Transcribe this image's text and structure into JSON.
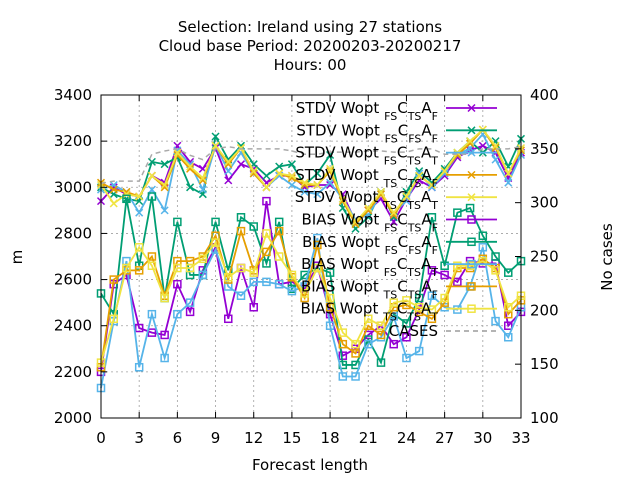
{
  "title_lines": [
    "Selection: Ireland using    27 stations",
    "Cloud base   Period: 20200203-20200217",
    "Hours:  00"
  ],
  "chart_data": {
    "type": "line",
    "title": "Selection: Ireland using    27 stations / Cloud base   Period: 20200203-20200217 / Hours:  00",
    "xlabel": "Forecast length",
    "ylabel": "m",
    "y2label": "No cases",
    "xlim": [
      0,
      33
    ],
    "ylim": [
      2000,
      3400
    ],
    "y2lim": [
      100,
      400
    ],
    "xticks": [
      0,
      3,
      6,
      9,
      12,
      15,
      18,
      21,
      24,
      27,
      30,
      33
    ],
    "yticks": [
      2000,
      2200,
      2400,
      2600,
      2800,
      3000,
      3200,
      3400
    ],
    "y2ticks": [
      100,
      150,
      200,
      250,
      300,
      350,
      400
    ],
    "grid": true,
    "legend_position": "top-right",
    "x": [
      0,
      1,
      2,
      3,
      4,
      5,
      6,
      7,
      8,
      9,
      10,
      11,
      12,
      13,
      14,
      15,
      16,
      17,
      18,
      19,
      20,
      21,
      22,
      23,
      24,
      25,
      26,
      27,
      28,
      29,
      30,
      31,
      32,
      33
    ],
    "series": [
      {
        "name": "STDV Wopt_FS C_TS A_F",
        "legend": {
          "pre": "STDV Wopt",
          "s1": "FS",
          "c": "C",
          "s2": "TS",
          "a": "A",
          "s3": "F"
        },
        "color": "#9400d3",
        "marker": "x",
        "dash": false,
        "axis": "left",
        "values": [
          2940,
          3000,
          2970,
          2960,
          3050,
          3020,
          3180,
          3110,
          3080,
          3170,
          3030,
          3100,
          3080,
          3020,
          3050,
          3050,
          3000,
          3010,
          3010,
          2970,
          2850,
          2900,
          2950,
          2850,
          2950,
          3030,
          3000,
          3050,
          3130,
          3160,
          3180,
          3150,
          3040,
          3150
        ]
      },
      {
        "name": "STDV Wopt_FS C_FS A_F",
        "legend": {
          "pre": "STDV Wopt",
          "s1": "FS",
          "c": "C",
          "s2": "FS",
          "a": "A",
          "s3": "F"
        },
        "color": "#009e73",
        "marker": "x",
        "dash": false,
        "axis": "left",
        "values": [
          3000,
          2970,
          2950,
          2940,
          3110,
          3100,
          3130,
          3000,
          2970,
          3220,
          3120,
          3180,
          3100,
          3050,
          3090,
          3100,
          3010,
          3060,
          3140,
          2910,
          2820,
          2870,
          2980,
          2870,
          2980,
          3070,
          3020,
          3080,
          3150,
          3200,
          3150,
          3200,
          3090,
          3210
        ]
      },
      {
        "name": "STDV Wopt_FS C_TS A_T",
        "legend": {
          "pre": "STDV Wopt",
          "s1": "FS",
          "c": "C",
          "s2": "TS",
          "a": "A",
          "s3": "T"
        },
        "color": "#56b4e9",
        "marker": "x",
        "dash": false,
        "axis": "left",
        "values": [
          2990,
          3010,
          2980,
          2890,
          2990,
          2900,
          3160,
          3100,
          2990,
          3180,
          3070,
          3150,
          3060,
          3000,
          3050,
          3010,
          2980,
          2970,
          3020,
          2950,
          2860,
          2880,
          2970,
          2890,
          2940,
          3060,
          3000,
          3060,
          3140,
          3170,
          3230,
          3120,
          3020,
          3140
        ]
      },
      {
        "name": "STDV Wopt_TS C_TS A_F",
        "legend": {
          "pre": "STDV Wopt",
          "s1": "TS",
          "c": "C",
          "s2": "TS",
          "a": "A",
          "s3": "F"
        },
        "color": "#e69f00",
        "marker": "x",
        "dash": false,
        "axis": "left",
        "values": [
          3020,
          2990,
          2980,
          2960,
          3050,
          3000,
          3140,
          3080,
          3030,
          3180,
          3100,
          3170,
          3060,
          3000,
          3060,
          3040,
          3010,
          3010,
          3070,
          2940,
          2840,
          2900,
          2970,
          2880,
          2960,
          3050,
          3010,
          3070,
          3140,
          3190,
          3250,
          3170,
          3060,
          3160
        ]
      },
      {
        "name": "STDV Wopt_TS C_TS A_T",
        "legend": {
          "pre": "STDV Wopt",
          "s1": "TS",
          "c": "C",
          "s2": "TS",
          "a": "A",
          "s3": "T"
        },
        "color": "#f0e442",
        "marker": "x",
        "dash": false,
        "axis": "left",
        "values": [
          3010,
          2930,
          2970,
          2960,
          3050,
          3010,
          3150,
          3090,
          3040,
          3180,
          3110,
          3170,
          3070,
          3000,
          3060,
          3050,
          3020,
          3010,
          3080,
          2950,
          2850,
          2910,
          2980,
          2890,
          2960,
          3050,
          3010,
          3070,
          3150,
          3200,
          3250,
          3180,
          3060,
          3170
        ]
      },
      {
        "name": "BIAS Wopt_FS C_TS A_F",
        "legend": {
          "pre": "BIAS Wopt",
          "s1": "FS",
          "c": "C",
          "s2": "TS",
          "a": "A",
          "s3": "F"
        },
        "color": "#9400d3",
        "marker": "square",
        "dash": false,
        "axis": "left",
        "values": [
          2200,
          2580,
          2620,
          2390,
          2370,
          2360,
          2580,
          2460,
          2640,
          2740,
          2430,
          2650,
          2480,
          2940,
          2580,
          2590,
          2560,
          2660,
          2450,
          2270,
          2300,
          2360,
          2400,
          2320,
          2350,
          2470,
          2640,
          2620,
          2590,
          2680,
          2670,
          2670,
          2400,
          2460
        ]
      },
      {
        "name": "BIAS Wopt_FS C_FS A_F",
        "legend": {
          "pre": "BIAS Wopt",
          "s1": "FS",
          "c": "C",
          "s2": "FS",
          "a": "A",
          "s3": "F"
        },
        "color": "#009e73",
        "marker": "square",
        "dash": false,
        "axis": "left",
        "values": [
          2540,
          2450,
          2950,
          2660,
          2960,
          2520,
          2850,
          2620,
          2620,
          2850,
          2640,
          2870,
          2830,
          2670,
          2850,
          2560,
          2620,
          2650,
          2630,
          2230,
          2230,
          2340,
          2240,
          2450,
          2410,
          2520,
          2870,
          2660,
          2890,
          2910,
          2790,
          2700,
          2630,
          2680
        ]
      },
      {
        "name": "BIAS Wopt_FS C_TS A_T",
        "legend": {
          "pre": "BIAS Wopt",
          "s1": "FS",
          "c": "C",
          "s2": "TS",
          "a": "A",
          "s3": "T"
        },
        "color": "#56b4e9",
        "marker": "square",
        "dash": false,
        "axis": "left",
        "values": [
          2130,
          2420,
          2680,
          2220,
          2450,
          2260,
          2450,
          2500,
          2620,
          2730,
          2570,
          2530,
          2590,
          2590,
          2580,
          2550,
          2570,
          2780,
          2400,
          2180,
          2180,
          2320,
          2350,
          2440,
          2260,
          2290,
          2530,
          2480,
          2470,
          2570,
          2740,
          2420,
          2350,
          2480
        ]
      },
      {
        "name": "BIAS Wopt_TS C_TS A_F",
        "legend": {
          "pre": "BIAS Wopt",
          "s1": "TS",
          "c": "C",
          "s2": "TS",
          "a": "A",
          "s3": "F"
        },
        "color": "#e69f00",
        "marker": "square",
        "dash": false,
        "axis": "left",
        "values": [
          2220,
          2600,
          2640,
          2640,
          2700,
          2530,
          2680,
          2680,
          2700,
          2790,
          2600,
          2810,
          2640,
          2720,
          2810,
          2610,
          2520,
          2750,
          2480,
          2320,
          2280,
          2400,
          2360,
          2480,
          2490,
          2460,
          2430,
          2500,
          2650,
          2650,
          2690,
          2650,
          2450,
          2510
        ]
      },
      {
        "name": "BIAS Wopt_TS C_TS A_T",
        "legend": {
          "pre": "BIAS Wopt",
          "s1": "TS",
          "c": "C",
          "s2": "TS",
          "a": "A",
          "s3": "T"
        },
        "color": "#f0e442",
        "marker": "square",
        "dash": false,
        "axis": "left",
        "values": [
          2240,
          2430,
          2650,
          2740,
          2660,
          2520,
          2650,
          2650,
          2690,
          2760,
          2610,
          2650,
          2630,
          2800,
          2700,
          2620,
          2540,
          2650,
          2520,
          2370,
          2320,
          2430,
          2400,
          2500,
          2510,
          2480,
          2470,
          2520,
          2660,
          2660,
          2680,
          2640,
          2480,
          2530
        ]
      },
      {
        "name": "CASES",
        "legend": {
          "pre": "CASES",
          "s1": "",
          "c": "",
          "s2": "",
          "a": "",
          "s3": ""
        },
        "color": "#aaaaaa",
        "marker": "none",
        "dash": true,
        "axis": "right",
        "values": [
          318,
          320,
          320,
          320,
          345,
          348,
          350,
          344,
          340,
          350,
          352,
          350,
          350,
          350,
          350,
          348,
          345,
          345,
          347,
          347,
          347,
          348,
          348,
          347,
          347,
          350,
          350,
          345,
          345,
          345,
          350,
          350,
          350,
          352
        ]
      }
    ]
  }
}
